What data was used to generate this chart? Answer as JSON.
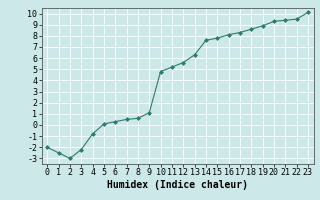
{
  "x": [
    0,
    1,
    2,
    3,
    4,
    5,
    6,
    7,
    8,
    9,
    10,
    11,
    12,
    13,
    14,
    15,
    16,
    17,
    18,
    19,
    20,
    21,
    22,
    23
  ],
  "y": [
    -2.0,
    -2.5,
    -3.0,
    -2.2,
    -0.8,
    0.1,
    0.3,
    0.5,
    0.6,
    1.1,
    4.8,
    5.2,
    5.6,
    6.3,
    7.6,
    7.8,
    8.1,
    8.3,
    8.6,
    8.9,
    9.3,
    9.4,
    9.5,
    10.1
  ],
  "xlabel": "Humidex (Indice chaleur)",
  "ylim": [
    -3.5,
    10.5
  ],
  "xlim": [
    -0.5,
    23.5
  ],
  "yticks": [
    -3,
    -2,
    -1,
    0,
    1,
    2,
    3,
    4,
    5,
    6,
    7,
    8,
    9,
    10
  ],
  "xticks": [
    0,
    1,
    2,
    3,
    4,
    5,
    6,
    7,
    8,
    9,
    10,
    11,
    12,
    13,
    14,
    15,
    16,
    17,
    18,
    19,
    20,
    21,
    22,
    23
  ],
  "line_color": "#2d7a6e",
  "bg_color": "#cce8e8",
  "grid_color": "#ffffff",
  "xlabel_fontsize": 7,
  "tick_fontsize": 6
}
